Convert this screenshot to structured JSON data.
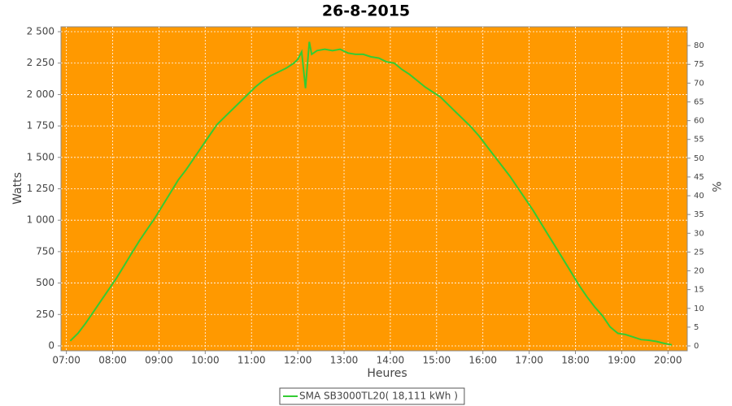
{
  "chart_data": {
    "type": "line",
    "title": "26-8-2015",
    "x_label": "Heures",
    "y_label": "Watts",
    "y2_label": "%",
    "x": [
      "07:05",
      "07:15",
      "07:25",
      "07:35",
      "07:45",
      "07:55",
      "08:05",
      "08:15",
      "08:25",
      "08:35",
      "08:45",
      "08:55",
      "09:05",
      "09:15",
      "09:25",
      "09:35",
      "09:45",
      "09:55",
      "10:05",
      "10:15",
      "10:25",
      "10:35",
      "10:45",
      "10:55",
      "11:05",
      "11:15",
      "11:25",
      "11:35",
      "11:45",
      "11:55",
      "12:00",
      "12:05",
      "12:10",
      "12:15",
      "12:18",
      "12:25",
      "12:35",
      "12:45",
      "12:55",
      "13:05",
      "13:15",
      "13:25",
      "13:35",
      "13:45",
      "13:55",
      "14:05",
      "14:15",
      "14:25",
      "14:35",
      "14:45",
      "14:55",
      "15:05",
      "15:15",
      "15:25",
      "15:35",
      "15:45",
      "15:55",
      "16:05",
      "16:15",
      "16:25",
      "16:35",
      "16:45",
      "16:55",
      "17:05",
      "17:15",
      "17:25",
      "17:35",
      "17:45",
      "17:55",
      "18:05",
      "18:15",
      "18:25",
      "18:35",
      "18:45",
      "18:55",
      "19:05",
      "19:15",
      "19:25",
      "19:35",
      "19:45",
      "19:55",
      "20:05"
    ],
    "series": [
      {
        "name": "SMA SB3000TL20( 18,111 kWh )",
        "color": "#33cc33",
        "values": [
          40,
          100,
          180,
          270,
          360,
          450,
          540,
          640,
          740,
          840,
          930,
          1020,
          1120,
          1220,
          1320,
          1400,
          1490,
          1580,
          1670,
          1760,
          1820,
          1880,
          1940,
          2000,
          2060,
          2110,
          2150,
          2180,
          2210,
          2250,
          2280,
          2340,
          2050,
          2420,
          2320,
          2350,
          2360,
          2350,
          2360,
          2330,
          2320,
          2320,
          2300,
          2290,
          2260,
          2250,
          2200,
          2160,
          2110,
          2060,
          2020,
          1980,
          1920,
          1860,
          1800,
          1740,
          1670,
          1590,
          1510,
          1430,
          1350,
          1260,
          1170,
          1080,
          980,
          880,
          780,
          680,
          580,
          480,
          390,
          310,
          240,
          150,
          100,
          90,
          70,
          50,
          45,
          35,
          20,
          8
        ]
      }
    ],
    "xlim": [
      "06:53",
      "20:25"
    ],
    "xticks": [
      "07:00",
      "08:00",
      "09:00",
      "10:00",
      "11:00",
      "12:00",
      "13:00",
      "14:00",
      "15:00",
      "16:00",
      "17:00",
      "18:00",
      "19:00",
      "20:00"
    ],
    "ylim": [
      -39,
      2539
    ],
    "yticks": [
      0,
      250,
      500,
      750,
      {
        "value": 1000,
        "label": "1 000"
      },
      {
        "value": 1250,
        "label": "1 250"
      },
      {
        "value": 1500,
        "label": "1 500"
      },
      {
        "value": 1750,
        "label": "1 750"
      },
      {
        "value": 2000,
        "label": "2 000"
      },
      {
        "value": 2250,
        "label": "2 250"
      },
      {
        "value": 2500,
        "label": "2 500"
      }
    ],
    "y2lim": [
      -1.3,
      85
    ],
    "y2ticks": [
      0,
      5,
      10,
      15,
      20,
      25,
      30,
      35,
      40,
      45,
      50,
      55,
      60,
      65,
      70,
      75,
      80
    ],
    "grid": true,
    "plot_background": "#ff9900",
    "legend": "bottom"
  }
}
